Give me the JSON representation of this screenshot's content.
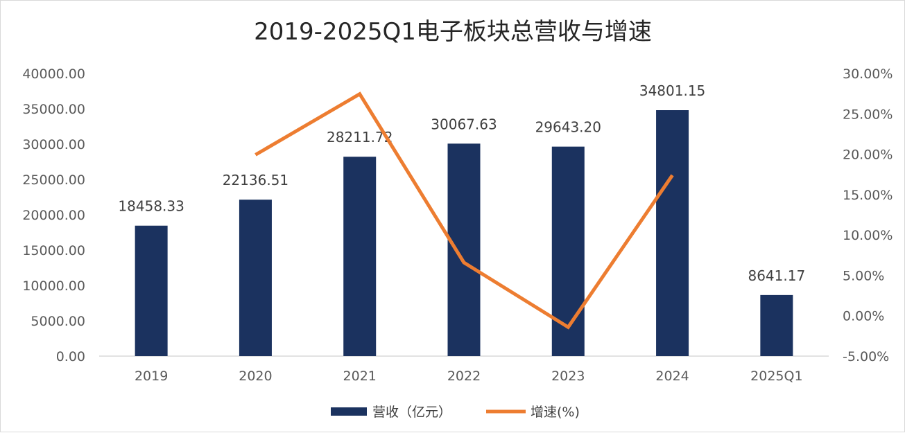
{
  "chart_data": {
    "type": "bar+line",
    "title": "2019-2025Q1电子板块总营收与增速",
    "categories": [
      "2019",
      "2020",
      "2021",
      "2022",
      "2023",
      "2024",
      "2025Q1"
    ],
    "series": [
      {
        "name": "营收（亿元）",
        "type": "bar",
        "axis": "left",
        "color": "#1b325f",
        "values": [
          18458.33,
          22136.51,
          28211.72,
          30067.63,
          29643.2,
          34801.15,
          8641.17
        ],
        "labels": [
          "18458.33",
          "22136.51",
          "28211.72",
          "30067.63",
          "29643.20",
          "34801.15",
          "8641.17"
        ]
      },
      {
        "name": "增速(%)",
        "type": "line",
        "axis": "right",
        "color": "#ed7d31",
        "values": [
          null,
          19.93,
          27.45,
          6.58,
          -1.41,
          17.4,
          null
        ]
      }
    ],
    "left_axis": {
      "ylim": [
        0,
        40000
      ],
      "ticks": [
        "0.00",
        "5000.00",
        "10000.00",
        "15000.00",
        "20000.00",
        "25000.00",
        "30000.00",
        "35000.00",
        "40000.00"
      ]
    },
    "right_axis": {
      "ylim": [
        -5,
        30
      ],
      "ticks": [
        "-5.00%",
        "0.00%",
        "5.00%",
        "10.00%",
        "15.00%",
        "20.00%",
        "25.00%",
        "30.00%"
      ]
    },
    "legend": {
      "position": "bottom",
      "items": [
        "营收（亿元）",
        "增速(%)"
      ]
    }
  }
}
